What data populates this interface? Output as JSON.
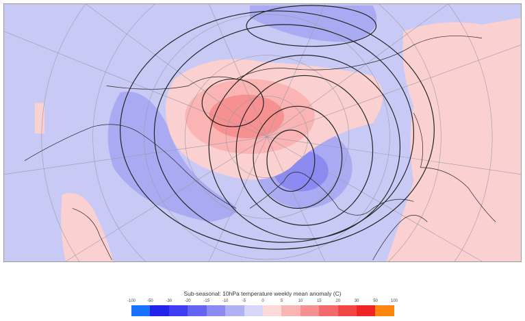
{
  "colorbar": {
    "title": "Sub-seasonal: 10hPa temperature weekly mean anomaly (C)",
    "labels": [
      "-100",
      "-50",
      "-30",
      "-20",
      "-15",
      "-10",
      "-5",
      "0",
      "5",
      "10",
      "15",
      "20",
      "30",
      "50",
      "100"
    ],
    "colors": [
      "#1a70ff",
      "#2323ee",
      "#3e3ef0",
      "#6464f3",
      "#8a8af2",
      "#b0b0f6",
      "#d6d6fa",
      "#fcd8d8",
      "#fab4b4",
      "#f79090",
      "#f46a6a",
      "#f24646",
      "#f02424",
      "#ff8410"
    ]
  },
  "map": {
    "background_color": "#c9c9f6",
    "warm_color": "#fbd0d0",
    "cold_color": "#a9a9f2"
  }
}
